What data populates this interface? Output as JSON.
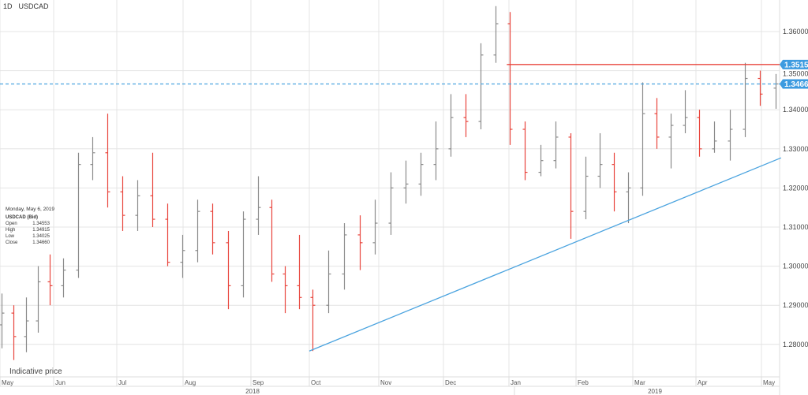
{
  "header": {
    "timeframe": "1D",
    "symbol": "USDCAD"
  },
  "footer_note": "Indicative price",
  "info_box": {
    "date": "Monday, May 6, 2019",
    "series": "USDCAD (Bid)",
    "rows": [
      {
        "label": "Open",
        "value": "1.34553"
      },
      {
        "label": "High",
        "value": "1.34915"
      },
      {
        "label": "Low",
        "value": "1.34025"
      },
      {
        "label": "Close",
        "value": "1.34660"
      }
    ]
  },
  "chart_data": {
    "type": "ohlc",
    "symbol": "USDCAD",
    "ylim": [
      1.2745,
      1.368
    ],
    "y_ticks": [
      "1.36000",
      "1.35000",
      "1.34000",
      "1.33000",
      "1.32000",
      "1.31000",
      "1.30000",
      "1.29000",
      "1.28000"
    ],
    "x_month_labels": [
      {
        "label": "May",
        "date": "2018-05-01"
      },
      {
        "label": "Jun",
        "date": "2018-06-01"
      },
      {
        "label": "Jul",
        "date": "2018-07-01"
      },
      {
        "label": "Aug",
        "date": "2018-08-01"
      },
      {
        "label": "Sep",
        "date": "2018-09-01"
      },
      {
        "label": "Oct",
        "date": "2018-10-01"
      },
      {
        "label": "Nov",
        "date": "2018-11-01"
      },
      {
        "label": "Dec",
        "date": "2018-12-01"
      },
      {
        "label": "Jan",
        "date": "2019-01-01"
      },
      {
        "label": "Feb",
        "date": "2019-02-01"
      },
      {
        "label": "Mar",
        "date": "2019-03-01"
      },
      {
        "label": "Apr",
        "date": "2019-04-01"
      },
      {
        "label": "May",
        "date": "2019-05-01"
      }
    ],
    "x_year_labels": [
      "2018",
      "2019"
    ],
    "grid": true,
    "up_color": "#8a8a8a",
    "down_color": "#e8453c",
    "bars": [
      [
        "2018-04-30",
        1.285,
        1.293,
        1.279,
        1.288
      ],
      [
        "2018-05-07",
        1.288,
        1.29,
        1.276,
        1.282
      ],
      [
        "2018-05-14",
        1.282,
        1.292,
        1.278,
        1.286
      ],
      [
        "2018-05-21",
        1.286,
        1.3,
        1.283,
        1.296
      ],
      [
        "2018-05-28",
        1.296,
        1.303,
        1.29,
        1.295
      ],
      [
        "2018-06-04",
        1.295,
        1.302,
        1.292,
        1.299
      ],
      [
        "2018-06-11",
        1.299,
        1.329,
        1.297,
        1.326
      ],
      [
        "2018-06-18",
        1.326,
        1.333,
        1.322,
        1.329
      ],
      [
        "2018-06-25",
        1.329,
        1.339,
        1.315,
        1.319
      ],
      [
        "2018-07-02",
        1.319,
        1.323,
        1.309,
        1.313
      ],
      [
        "2018-07-09",
        1.313,
        1.322,
        1.309,
        1.318
      ],
      [
        "2018-07-16",
        1.318,
        1.329,
        1.31,
        1.312
      ],
      [
        "2018-07-23",
        1.312,
        1.316,
        1.3,
        1.301
      ],
      [
        "2018-07-30",
        1.301,
        1.308,
        1.297,
        1.304
      ],
      [
        "2018-08-06",
        1.304,
        1.317,
        1.301,
        1.314
      ],
      [
        "2018-08-13",
        1.314,
        1.316,
        1.303,
        1.306
      ],
      [
        "2018-08-20",
        1.306,
        1.309,
        1.289,
        1.295
      ],
      [
        "2018-08-27",
        1.295,
        1.314,
        1.292,
        1.312
      ],
      [
        "2018-09-03",
        1.312,
        1.323,
        1.308,
        1.315
      ],
      [
        "2018-09-10",
        1.315,
        1.317,
        1.296,
        1.298
      ],
      [
        "2018-09-17",
        1.298,
        1.3,
        1.288,
        1.295
      ],
      [
        "2018-09-24",
        1.295,
        1.308,
        1.289,
        1.292
      ],
      [
        "2018-10-01",
        1.292,
        1.294,
        1.2783,
        1.29
      ],
      [
        "2018-10-08",
        1.29,
        1.304,
        1.288,
        1.298
      ],
      [
        "2018-10-15",
        1.298,
        1.311,
        1.294,
        1.308
      ],
      [
        "2018-10-22",
        1.308,
        1.313,
        1.299,
        1.306
      ],
      [
        "2018-10-29",
        1.306,
        1.317,
        1.303,
        1.311
      ],
      [
        "2018-11-05",
        1.311,
        1.324,
        1.308,
        1.32
      ],
      [
        "2018-11-12",
        1.32,
        1.327,
        1.316,
        1.321
      ],
      [
        "2018-11-19",
        1.321,
        1.329,
        1.318,
        1.326
      ],
      [
        "2018-11-26",
        1.326,
        1.337,
        1.322,
        1.33
      ],
      [
        "2018-12-03",
        1.33,
        1.344,
        1.328,
        1.338
      ],
      [
        "2018-12-10",
        1.338,
        1.344,
        1.333,
        1.337
      ],
      [
        "2018-12-17",
        1.337,
        1.357,
        1.335,
        1.354
      ],
      [
        "2018-12-24",
        1.354,
        1.3665,
        1.352,
        1.362
      ],
      [
        "2018-12-31",
        1.362,
        1.365,
        1.331,
        1.335
      ],
      [
        "2019-01-07",
        1.335,
        1.337,
        1.322,
        1.324
      ],
      [
        "2019-01-14",
        1.324,
        1.331,
        1.323,
        1.327
      ],
      [
        "2019-01-21",
        1.327,
        1.337,
        1.325,
        1.333
      ],
      [
        "2019-01-28",
        1.333,
        1.334,
        1.307,
        1.314
      ],
      [
        "2019-02-04",
        1.314,
        1.328,
        1.312,
        1.323
      ],
      [
        "2019-02-11",
        1.323,
        1.334,
        1.32,
        1.326
      ],
      [
        "2019-02-18",
        1.326,
        1.329,
        1.314,
        1.319
      ],
      [
        "2019-02-25",
        1.319,
        1.324,
        1.311,
        1.32
      ],
      [
        "2019-03-04",
        1.32,
        1.347,
        1.318,
        1.339
      ],
      [
        "2019-03-11",
        1.339,
        1.343,
        1.33,
        1.333
      ],
      [
        "2019-03-18",
        1.333,
        1.339,
        1.325,
        1.336
      ],
      [
        "2019-03-25",
        1.336,
        1.345,
        1.334,
        1.338
      ],
      [
        "2019-04-01",
        1.338,
        1.34,
        1.328,
        1.33
      ],
      [
        "2019-04-08",
        1.33,
        1.337,
        1.329,
        1.332
      ],
      [
        "2019-04-15",
        1.332,
        1.34,
        1.327,
        1.335
      ],
      [
        "2019-04-22",
        1.335,
        1.352,
        1.333,
        1.348
      ],
      [
        "2019-04-29",
        1.348,
        1.35,
        1.341,
        1.344
      ],
      [
        "2019-05-06",
        1.34553,
        1.34915,
        1.34025,
        1.3466
      ]
    ],
    "annotations": {
      "resistance_line": {
        "price": 1.35157,
        "from": "2018-12-31",
        "color": "#e8453c",
        "label": "1.35157"
      },
      "current_price_line": {
        "price": 1.3466,
        "style": "dashed",
        "color": "#4aa3df",
        "label": "1.34660"
      },
      "trendline": {
        "from": [
          "2018-10-01",
          1.2783
        ],
        "to": [
          "2019-05-10",
          1.3277
        ],
        "color": "#4aa3df"
      }
    }
  }
}
